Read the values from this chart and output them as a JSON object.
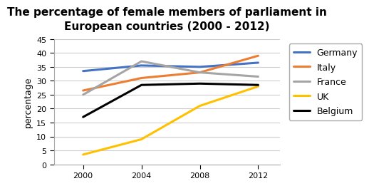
{
  "title": "The percentage of female members of parliament in\nEuropean countries (2000 - 2012)",
  "ylabel": "percentage",
  "years": [
    2000,
    2004,
    2008,
    2012
  ],
  "series": [
    {
      "label": "Germany",
      "color": "#4472C4",
      "values": [
        33.5,
        35.5,
        35.0,
        36.5
      ]
    },
    {
      "label": "Italy",
      "color": "#ED7D31",
      "values": [
        26.5,
        31.0,
        33.0,
        39.0
      ]
    },
    {
      "label": "France",
      "color": "#A5A5A5",
      "values": [
        25.0,
        37.0,
        33.0,
        31.5
      ]
    },
    {
      "label": "UK",
      "color": "#FFC000",
      "values": [
        3.5,
        9.0,
        21.0,
        28.0
      ]
    },
    {
      "label": "Belgium",
      "color": "#000000",
      "values": [
        17.0,
        28.5,
        29.0,
        28.5
      ]
    }
  ],
  "ylim": [
    0,
    45
  ],
  "yticks": [
    0,
    5,
    10,
    15,
    20,
    25,
    30,
    35,
    40,
    45
  ],
  "xticks": [
    2000,
    2004,
    2008,
    2012
  ],
  "xlim": [
    1998.0,
    2013.5
  ],
  "grid_color": "#CCCCCC",
  "background_color": "#FFFFFF",
  "title_fontsize": 11,
  "axis_label_fontsize": 9,
  "tick_fontsize": 8,
  "legend_fontsize": 9,
  "linewidth": 2.2
}
